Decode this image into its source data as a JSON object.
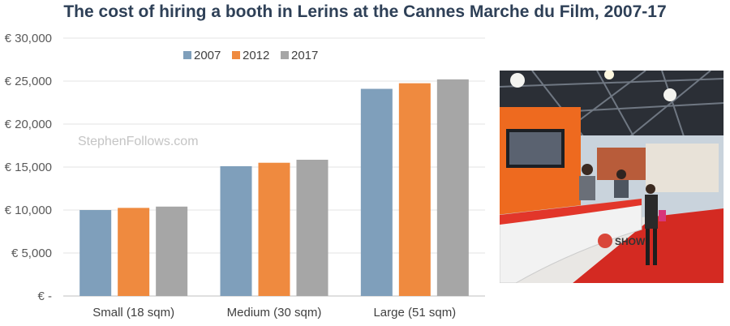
{
  "page": {
    "title": "The cost of hiring a booth in Lerins at the Cannes Marche du Film, 2007-17",
    "watermark": "StephenFollows.com"
  },
  "chart_data": {
    "type": "bar",
    "title": "The cost of hiring a booth in Lerins at the Cannes Marche du Film, 2007-17",
    "categories": [
      "Small (18 sqm)",
      "Medium (30 sqm)",
      "Large (51 sqm)"
    ],
    "series": [
      {
        "name": "2007",
        "color": "#7f9fbb",
        "values": [
          10000,
          15100,
          24100
        ]
      },
      {
        "name": "2012",
        "color": "#ef8a3f",
        "values": [
          10250,
          15500,
          24750
        ]
      },
      {
        "name": "2017",
        "color": "#a6a6a6",
        "values": [
          10400,
          15850,
          25200
        ]
      }
    ],
    "y_ticks": [
      {
        "value": 0,
        "label": "€ -"
      },
      {
        "value": 5000,
        "label": "€ 5,000"
      },
      {
        "value": 10000,
        "label": "€ 10,000"
      },
      {
        "value": 15000,
        "label": "€ 15,000"
      },
      {
        "value": 20000,
        "label": "€ 20,000"
      },
      {
        "value": 25000,
        "label": "€ 25,000"
      },
      {
        "value": 30000,
        "label": "€ 30,000"
      }
    ],
    "ylim": [
      0,
      30000
    ],
    "grid": true,
    "legend_position": "top-center"
  },
  "photo": {
    "description": "photo of an exhibition booth reception desk",
    "desk_sign": "SHOW"
  }
}
